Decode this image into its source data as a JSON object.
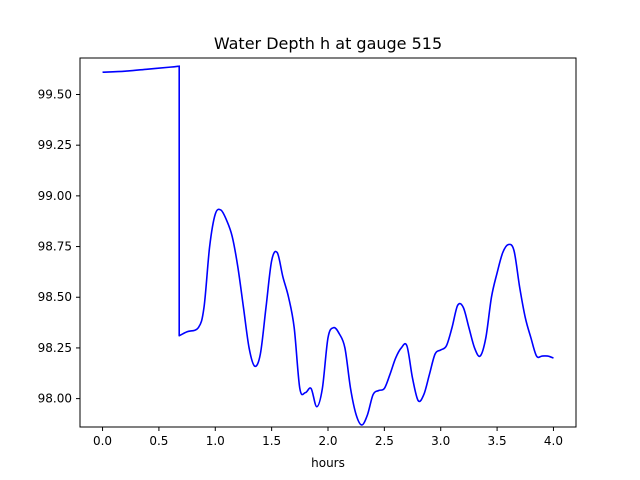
{
  "chart_data": {
    "type": "line",
    "title": "Water Depth h at gauge 515",
    "xlabel": "hours",
    "ylabel": "",
    "xlim": [
      -0.2,
      4.2
    ],
    "ylim": [
      97.86,
      99.68
    ],
    "grid": false,
    "legend": "none",
    "x_ticks": [
      0.0,
      0.5,
      1.0,
      1.5,
      2.0,
      2.5,
      3.0,
      3.5,
      4.0
    ],
    "x_tick_labels": [
      "0.0",
      "0.5",
      "1.0",
      "1.5",
      "2.0",
      "2.5",
      "3.0",
      "3.5",
      "4.0"
    ],
    "y_ticks": [
      98.0,
      98.25,
      98.5,
      98.75,
      99.0,
      99.25,
      99.5
    ],
    "y_tick_labels": [
      "98.00",
      "98.25",
      "98.50",
      "98.75",
      "99.00",
      "99.25",
      "99.50"
    ],
    "series": [
      {
        "color": "#0000ff",
        "x": [
          0.0,
          0.2,
          0.4,
          0.6,
          0.68,
          0.68,
          0.75,
          0.85,
          0.9,
          0.95,
          1.0,
          1.05,
          1.1,
          1.15,
          1.2,
          1.25,
          1.3,
          1.35,
          1.4,
          1.45,
          1.5,
          1.55,
          1.6,
          1.65,
          1.7,
          1.75,
          1.8,
          1.85,
          1.9,
          1.95,
          2.0,
          2.05,
          2.1,
          2.15,
          2.2,
          2.25,
          2.3,
          2.35,
          2.4,
          2.45,
          2.5,
          2.55,
          2.6,
          2.65,
          2.7,
          2.75,
          2.8,
          2.85,
          2.9,
          2.95,
          3.0,
          3.05,
          3.1,
          3.15,
          3.2,
          3.25,
          3.3,
          3.35,
          3.4,
          3.45,
          3.5,
          3.55,
          3.6,
          3.65,
          3.7,
          3.75,
          3.8,
          3.85,
          3.9,
          3.95,
          4.0
        ],
        "y": [
          99.61,
          99.615,
          99.625,
          99.635,
          99.64,
          98.31,
          98.33,
          98.35,
          98.45,
          98.75,
          98.91,
          98.93,
          98.88,
          98.8,
          98.65,
          98.45,
          98.25,
          98.16,
          98.22,
          98.45,
          98.68,
          98.72,
          98.6,
          98.5,
          98.35,
          98.05,
          98.03,
          98.05,
          97.96,
          98.05,
          98.3,
          98.35,
          98.32,
          98.25,
          98.05,
          97.92,
          97.87,
          97.92,
          98.02,
          98.04,
          98.05,
          98.12,
          98.2,
          98.25,
          98.26,
          98.1,
          97.99,
          98.02,
          98.12,
          98.22,
          98.24,
          98.26,
          98.35,
          98.46,
          98.45,
          98.35,
          98.25,
          98.21,
          98.3,
          98.5,
          98.62,
          98.72,
          98.76,
          98.73,
          98.55,
          98.4,
          98.3,
          98.21,
          98.21,
          98.21,
          98.2
        ]
      }
    ]
  }
}
